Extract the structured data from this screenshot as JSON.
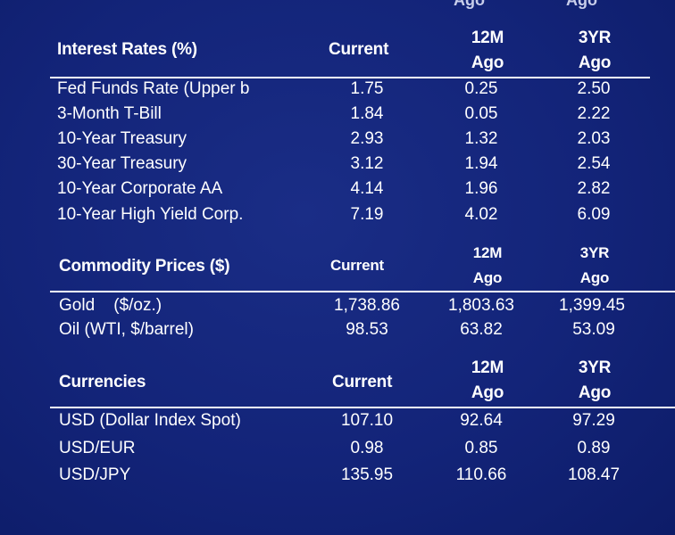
{
  "cutoff": {
    "left": "Ago",
    "right": "Ago"
  },
  "sections": [
    {
      "title": "Interest Rates (%)",
      "col_current": "Current",
      "col_12m_top": "12M",
      "col_12m_bottom": "Ago",
      "col_3yr_top": "3YR",
      "col_3yr_bottom": "Ago",
      "rows": [
        {
          "label": "Fed Funds Rate (Upper b",
          "current": "1.75",
          "m12": "0.25",
          "y3": "2.50"
        },
        {
          "label": "3-Month T-Bill",
          "current": "1.84",
          "m12": "0.05",
          "y3": "2.22"
        },
        {
          "label": "10-Year Treasury",
          "current": "2.93",
          "m12": "1.32",
          "y3": "2.03"
        },
        {
          "label": "30-Year Treasury",
          "current": "3.12",
          "m12": "1.94",
          "y3": "2.54"
        },
        {
          "label": "10-Year Corporate AA",
          "current": "4.14",
          "m12": "1.96",
          "y3": "2.82"
        },
        {
          "label": "10-Year High Yield Corp.",
          "current": "7.19",
          "m12": "4.02",
          "y3": "6.09"
        }
      ]
    },
    {
      "title": "Commodity Prices ($)",
      "col_current": "Current",
      "col_12m_top": "12M",
      "col_12m_bottom": "Ago",
      "col_3yr_top": "3YR",
      "col_3yr_bottom": "Ago",
      "rows": [
        {
          "label": "Gold    ($/oz.)",
          "current": "1,738.86",
          "m12": "1,803.63",
          "y3": "1,399.45"
        },
        {
          "label": "Oil (WTI, $/barrel)",
          "current": "98.53",
          "m12": "63.82",
          "y3": "53.09"
        }
      ]
    },
    {
      "title": "Currencies",
      "col_current": "Current",
      "col_12m_top": "12M",
      "col_12m_bottom": "Ago",
      "col_3yr_top": "3YR",
      "col_3yr_bottom": "Ago",
      "rows": [
        {
          "label": "USD (Dollar Index Spot)",
          "current": "107.10",
          "m12": "92.64",
          "y3": "97.29"
        },
        {
          "label": "USD/EUR",
          "current": "0.98",
          "m12": "0.85",
          "y3": "0.89"
        },
        {
          "label": "USD/JPY",
          "current": "135.95",
          "m12": "110.66",
          "y3": "108.47"
        }
      ]
    }
  ]
}
